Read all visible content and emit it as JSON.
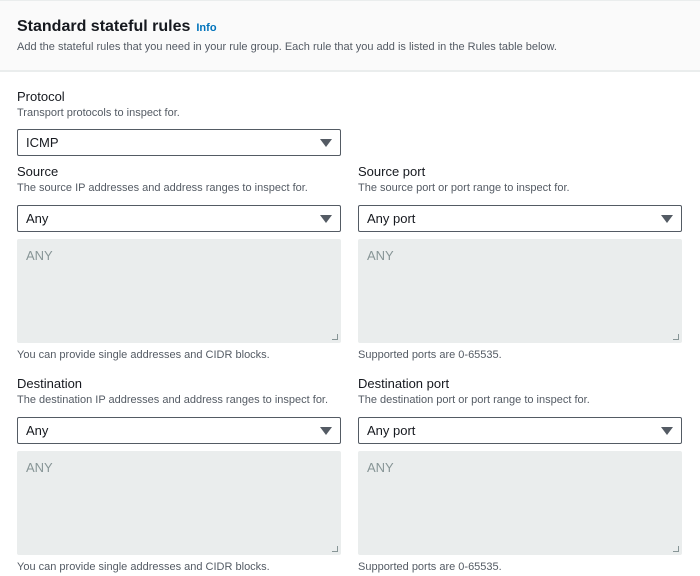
{
  "header": {
    "title": "Standard stateful rules",
    "info": "Info",
    "description": "Add the stateful rules that you need in your rule group. Each rule that you add is listed in the Rules table below."
  },
  "protocol": {
    "label": "Protocol",
    "description": "Transport protocols to inspect for.",
    "value": "ICMP"
  },
  "source": {
    "label": "Source",
    "description": "The source IP addresses and address ranges to inspect for.",
    "value": "Any",
    "textarea": "ANY",
    "hint": "You can provide single addresses and CIDR blocks."
  },
  "source_port": {
    "label": "Source port",
    "description": "The source port or port range to inspect for.",
    "value": "Any port",
    "textarea": "ANY",
    "hint": "Supported ports are 0-65535."
  },
  "destination": {
    "label": "Destination",
    "description": "The destination IP addresses and address ranges to inspect for.",
    "value": "Any",
    "textarea": "ANY",
    "hint": "You can provide single addresses and CIDR blocks."
  },
  "destination_port": {
    "label": "Destination port",
    "description": "The destination port or port range to inspect for.",
    "value": "Any port",
    "textarea": "ANY",
    "hint": "Supported ports are 0-65535."
  }
}
